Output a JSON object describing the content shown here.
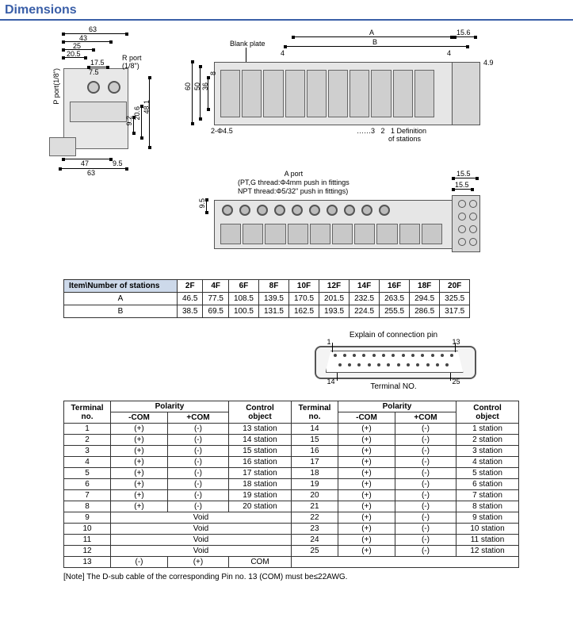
{
  "header": {
    "title": "Dimensions"
  },
  "left_drawing": {
    "dims": {
      "top1": "63",
      "top2": "43",
      "top3": "25",
      "top4": "20.5",
      "p_port": "P port(1/8\")",
      "r_port": "R port\n(1/8\")",
      "mid1": "17.5",
      "mid2": "7.5",
      "right1": "9.2",
      "right2": "20.6",
      "right3": "48.1",
      "bot1": "47",
      "bot2": "63",
      "bot_off": "9.5"
    }
  },
  "right_top": {
    "blank_plate": "Blank plate",
    "A": "A",
    "B": "B",
    "dim4l": "4",
    "dim4r": "4",
    "dim15_6": "15.6",
    "dim4_9": "4.9",
    "v60": "60",
    "v50": "50",
    "v36": "36",
    "v8": "8",
    "holes": "2-Φ4.5",
    "def": "……3   2   1 Definition\n                of stations"
  },
  "right_bottom": {
    "a_port": "A port",
    "pt": "(PT,G thread:Φ4mm push in fittings",
    "npt": "NPT thread:Φ5/32\" push in fittings)",
    "v9_5": "9.5",
    "h15_5a": "15.5",
    "h15_5b": "15.5"
  },
  "dim_table": {
    "head": [
      "Item\\Number of stations",
      "2F",
      "4F",
      "6F",
      "8F",
      "10F",
      "12F",
      "14F",
      "16F",
      "18F",
      "20F"
    ],
    "rows": [
      [
        "A",
        "46.5",
        "77.5",
        "108.5",
        "139.5",
        "170.5",
        "201.5",
        "232.5",
        "263.5",
        "294.5",
        "325.5"
      ],
      [
        "B",
        "38.5",
        "69.5",
        "100.5",
        "131.5",
        "162.5",
        "193.5",
        "224.5",
        "255.5",
        "286.5",
        "317.5"
      ]
    ]
  },
  "connector": {
    "title": "Explain of connection pin",
    "p1": "1",
    "p13": "13",
    "p14": "14",
    "p25": "25",
    "term_label": "Terminal NO."
  },
  "term_table": {
    "head": [
      "Terminal\nno.",
      "Polarity",
      "Control\nobject",
      "Terminal\nno.",
      "Polarity",
      "Control\nobject"
    ],
    "subhead": [
      "-COM",
      "+COM",
      "-COM",
      "+COM"
    ],
    "rows": [
      [
        "1",
        "(+)",
        "(-)",
        "13 station",
        "14",
        "(+)",
        "(-)",
        "1 station"
      ],
      [
        "2",
        "(+)",
        "(-)",
        "14 station",
        "15",
        "(+)",
        "(-)",
        "2 station"
      ],
      [
        "3",
        "(+)",
        "(-)",
        "15 station",
        "16",
        "(+)",
        "(-)",
        "3 station"
      ],
      [
        "4",
        "(+)",
        "(-)",
        "16 station",
        "17",
        "(+)",
        "(-)",
        "4 station"
      ],
      [
        "5",
        "(+)",
        "(-)",
        "17 station",
        "18",
        "(+)",
        "(-)",
        "5 station"
      ],
      [
        "6",
        "(+)",
        "(-)",
        "18 station",
        "19",
        "(+)",
        "(-)",
        "6 station"
      ],
      [
        "7",
        "(+)",
        "(-)",
        "19 station",
        "20",
        "(+)",
        "(-)",
        "7 station"
      ],
      [
        "8",
        "(+)",
        "(-)",
        "20 station",
        "21",
        "(+)",
        "(-)",
        "8 station"
      ],
      [
        "9",
        "void",
        "",
        "",
        "22",
        "(+)",
        "(-)",
        "9 station"
      ],
      [
        "10",
        "void",
        "",
        "",
        "23",
        "(+)",
        "(-)",
        "10 station"
      ],
      [
        "11",
        "void",
        "",
        "",
        "24",
        "(+)",
        "(-)",
        "11 station"
      ],
      [
        "12",
        "void",
        "",
        "",
        "25",
        "(+)",
        "(-)",
        "12 station"
      ],
      [
        "13",
        "(-)",
        "(+)",
        "COM",
        "",
        "",
        "",
        ""
      ]
    ]
  },
  "note": "[Note] The D-sub cable of the corresponding Pin no. 13 (COM) must be≤22AWG."
}
